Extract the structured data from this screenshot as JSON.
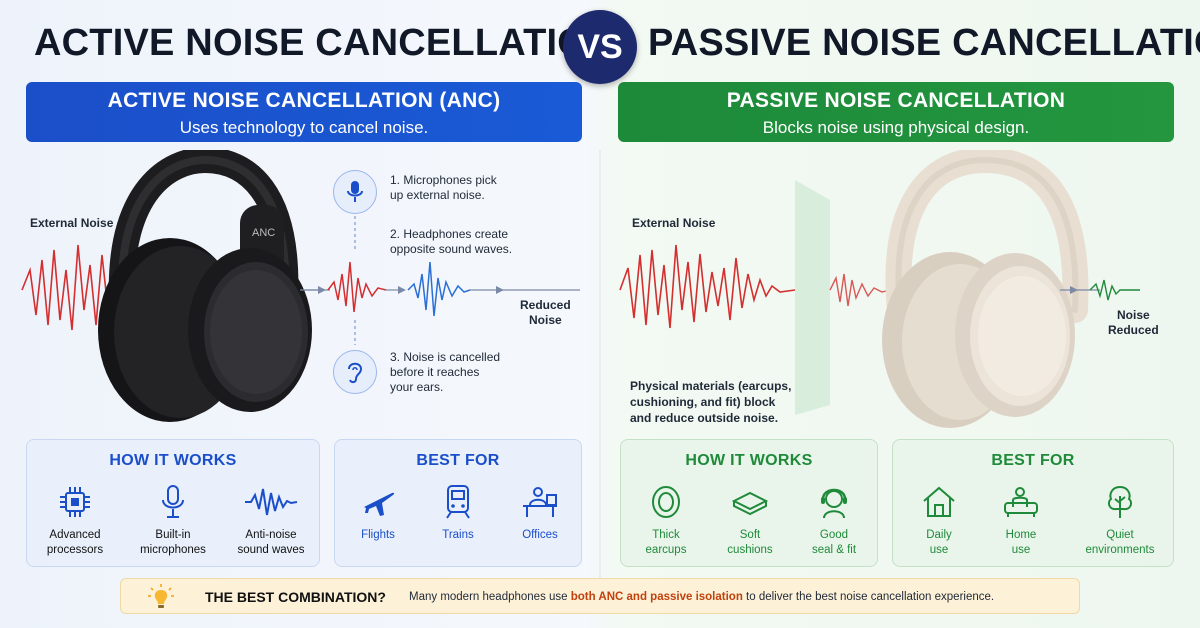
{
  "header": {
    "left_title": "ACTIVE NOISE CANCELLATION",
    "vs": "VS",
    "right_title": "PASSIVE NOISE CANCELLATION"
  },
  "anc": {
    "banner_title": "ACTIVE NOISE CANCELLATION (ANC)",
    "banner_subtitle": "Uses technology to cancel noise.",
    "external_noise_label": "External Noise",
    "headphone_mark": "ANC",
    "reduced_noise_label": [
      "Reduced",
      "Noise"
    ],
    "steps": [
      {
        "lines": [
          "1. Microphones pick",
          "up external noise."
        ],
        "icon": "microphone-icon"
      },
      {
        "lines": [
          "2. Headphones create",
          "opposite sound waves."
        ],
        "icon": "none"
      },
      {
        "lines": [
          "3. Noise is cancelled",
          "before it reaches",
          "your ears."
        ],
        "icon": "ear-icon"
      }
    ],
    "how_it_works": {
      "title": "HOW IT WORKS",
      "items": [
        {
          "lines": [
            "Advanced",
            "processors"
          ],
          "icon": "processor-chip-icon"
        },
        {
          "lines": [
            "Built-in",
            "microphones"
          ],
          "icon": "microphone-icon"
        },
        {
          "lines": [
            "Anti-noise",
            "sound waves"
          ],
          "icon": "sound-wave-icon"
        }
      ]
    },
    "best_for": {
      "title": "BEST FOR",
      "items": [
        {
          "label": "Flights",
          "icon": "airplane-icon"
        },
        {
          "label": "Trains",
          "icon": "train-icon"
        },
        {
          "label": "Offices",
          "icon": "office-desk-icon"
        }
      ]
    }
  },
  "pnc": {
    "banner_title": "PASSIVE NOISE CANCELLATION",
    "banner_subtitle": "Blocks noise using physical design.",
    "external_noise_label": "External Noise",
    "reduced_noise_label": [
      "Noise",
      "Reduced"
    ],
    "note": [
      "Physical materials (earcups,",
      "cushioning, and fit) block",
      "and reduce outside noise."
    ],
    "how_it_works": {
      "title": "HOW IT WORKS",
      "items": [
        {
          "lines": [
            "Thick",
            "earcups"
          ],
          "icon": "earcup-icon"
        },
        {
          "lines": [
            "Soft",
            "cushions"
          ],
          "icon": "cushion-icon"
        },
        {
          "lines": [
            "Good",
            "seal & fit"
          ],
          "icon": "head-fit-icon"
        }
      ]
    },
    "best_for": {
      "title": "BEST FOR",
      "items": [
        {
          "lines": [
            "Daily",
            "use"
          ],
          "icon": "house-icon"
        },
        {
          "lines": [
            "Home",
            "use"
          ],
          "icon": "home-sofa-icon"
        },
        {
          "lines": [
            "Quiet",
            "environments"
          ],
          "icon": "tree-icon"
        }
      ]
    }
  },
  "bottom": {
    "title": "THE BEST COMBINATION?",
    "text_before": "Many modern headphones use ",
    "text_highlight": "both ANC and passive isolation",
    "text_after": " to deliver the best noise cancellation experience.",
    "icon": "lightbulb-icon"
  },
  "colors": {
    "anc_blue": "#1b4fc9",
    "pnc_green": "#1f8a3a",
    "noise_red": "#d32f2f",
    "antiwave_blue": "#2a6fd6",
    "vs_navy": "#1e2a6e",
    "highlight_orange": "#c2410c"
  }
}
